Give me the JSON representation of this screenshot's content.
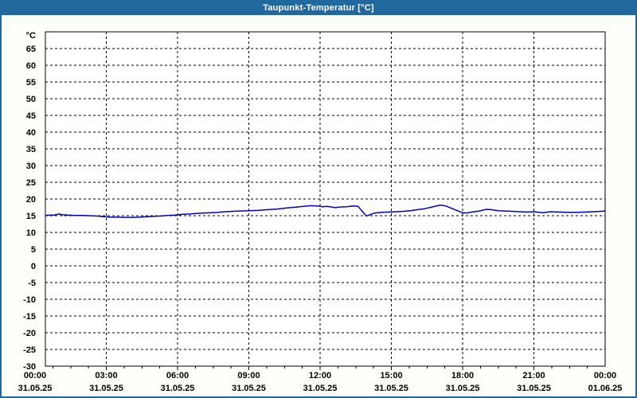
{
  "window": {
    "title": "Taupunkt-Temperatur [°C]",
    "titlebar_color": "#20689d",
    "border_color": "#20689d"
  },
  "chart_data": {
    "type": "line",
    "title": "Taupunkt-Temperatur [°C]",
    "unit_label": "°C",
    "grid": "dashed",
    "legend": "none",
    "ylim": [
      -30,
      70
    ],
    "y_tick_labels": [
      65,
      60,
      55,
      50,
      45,
      40,
      35,
      30,
      25,
      20,
      15,
      10,
      5,
      0,
      -5,
      -10,
      -15,
      -20,
      -25,
      -30
    ],
    "x_ticks": [
      {
        "t": 0,
        "time": "00:00",
        "date": "31.05.25"
      },
      {
        "t": 3,
        "time": "03:00",
        "date": "31.05.25"
      },
      {
        "t": 6,
        "time": "06:00",
        "date": "31.05.25"
      },
      {
        "t": 9,
        "time": "09:00",
        "date": "31.05.25"
      },
      {
        "t": 12,
        "time": "12:00",
        "date": "31.05.25"
      },
      {
        "t": 15,
        "time": "15:00",
        "date": "31.05.25"
      },
      {
        "t": 18,
        "time": "18:00",
        "date": "31.05.25"
      },
      {
        "t": 21,
        "time": "21:00",
        "date": "31.05.25"
      },
      {
        "t": 24,
        "time": "00:00",
        "date": "01.06.25"
      }
    ],
    "line_color": "#0000be",
    "series": [
      {
        "name": "Taupunkt-Temperatur",
        "points": [
          [
            0.45,
            15.1
          ],
          [
            0.6,
            15.2
          ],
          [
            0.8,
            15.2
          ],
          [
            1.0,
            15.5
          ],
          [
            1.15,
            15.3
          ],
          [
            1.4,
            15.2
          ],
          [
            1.7,
            15.1
          ],
          [
            2.0,
            15.1
          ],
          [
            2.3,
            15.0
          ],
          [
            2.6,
            14.9
          ],
          [
            2.9,
            14.7
          ],
          [
            3.2,
            14.6
          ],
          [
            3.5,
            14.6
          ],
          [
            3.8,
            14.5
          ],
          [
            4.1,
            14.5
          ],
          [
            4.4,
            14.6
          ],
          [
            4.7,
            14.7
          ],
          [
            5.0,
            14.8
          ],
          [
            5.3,
            14.9
          ],
          [
            5.6,
            15.1
          ],
          [
            5.9,
            15.2
          ],
          [
            6.2,
            15.4
          ],
          [
            6.5,
            15.5
          ],
          [
            6.8,
            15.7
          ],
          [
            7.1,
            15.8
          ],
          [
            7.4,
            15.9
          ],
          [
            7.7,
            16.0
          ],
          [
            8.0,
            16.2
          ],
          [
            8.3,
            16.3
          ],
          [
            8.6,
            16.4
          ],
          [
            9.0,
            16.5
          ],
          [
            9.4,
            16.6
          ],
          [
            9.8,
            16.8
          ],
          [
            10.2,
            17.0
          ],
          [
            10.6,
            17.3
          ],
          [
            11.0,
            17.6
          ],
          [
            11.3,
            17.8
          ],
          [
            11.6,
            18.0
          ],
          [
            11.9,
            17.9
          ],
          [
            12.1,
            17.7
          ],
          [
            12.3,
            17.8
          ],
          [
            12.5,
            17.6
          ],
          [
            12.65,
            17.4
          ],
          [
            12.8,
            17.6
          ],
          [
            13.1,
            17.7
          ],
          [
            13.4,
            17.9
          ],
          [
            13.6,
            17.8
          ],
          [
            13.75,
            16.5
          ],
          [
            13.95,
            14.9
          ],
          [
            14.1,
            15.3
          ],
          [
            14.3,
            15.8
          ],
          [
            14.6,
            16.0
          ],
          [
            14.9,
            16.1
          ],
          [
            15.2,
            16.2
          ],
          [
            15.5,
            16.3
          ],
          [
            15.8,
            16.5
          ],
          [
            16.1,
            16.8
          ],
          [
            16.4,
            17.1
          ],
          [
            16.7,
            17.6
          ],
          [
            17.0,
            18.1
          ],
          [
            17.1,
            18.2
          ],
          [
            17.3,
            17.9
          ],
          [
            17.5,
            17.3
          ],
          [
            17.75,
            16.6
          ],
          [
            18.0,
            15.9
          ],
          [
            18.15,
            15.8
          ],
          [
            18.4,
            16.1
          ],
          [
            18.7,
            16.4
          ],
          [
            19.0,
            16.9
          ],
          [
            19.2,
            16.8
          ],
          [
            19.5,
            16.5
          ],
          [
            19.8,
            16.4
          ],
          [
            20.1,
            16.3
          ],
          [
            20.4,
            16.2
          ],
          [
            20.7,
            16.1
          ],
          [
            21.0,
            16.2
          ],
          [
            21.4,
            15.9
          ],
          [
            21.7,
            16.2
          ],
          [
            22.0,
            16.1
          ],
          [
            22.4,
            16.0
          ],
          [
            22.8,
            16.0
          ],
          [
            23.2,
            16.1
          ],
          [
            23.5,
            16.2
          ],
          [
            23.8,
            16.3
          ],
          [
            24.0,
            16.4
          ]
        ]
      }
    ]
  }
}
